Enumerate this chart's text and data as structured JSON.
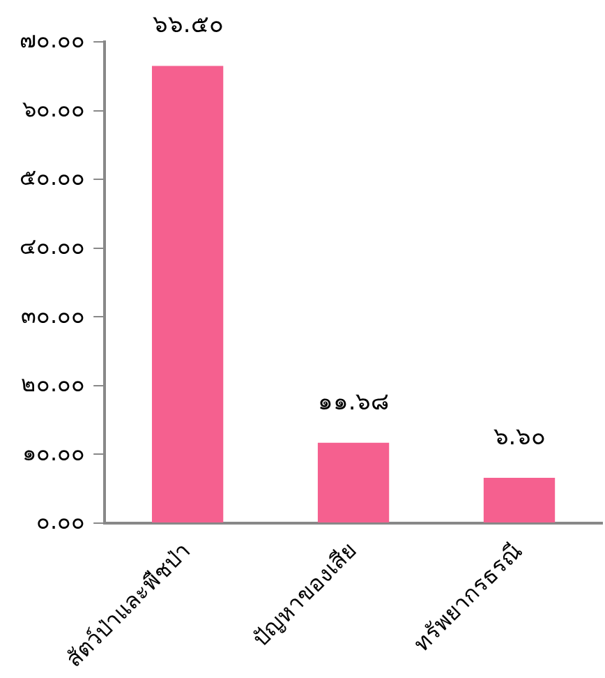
{
  "chart_data": {
    "type": "bar",
    "categories": [
      "สัตว์ป่าและพืชป่า",
      "ปัญหาของเสีย",
      "ทรัพยากรธรณี"
    ],
    "values": [
      66.5,
      11.68,
      6.6
    ],
    "value_labels": [
      "๖๖.๕๐",
      "๑๑.๖๘",
      "๖.๖๐"
    ],
    "color": "#f5608f",
    "ylim": [
      0,
      70
    ],
    "yticks": [
      {
        "value": 0,
        "label": "๐.๐๐"
      },
      {
        "value": 10,
        "label": "๑๐.๐๐"
      },
      {
        "value": 20,
        "label": "๒๐.๐๐"
      },
      {
        "value": 30,
        "label": "๓๐.๐๐"
      },
      {
        "value": 40,
        "label": "๔๐.๐๐"
      },
      {
        "value": 50,
        "label": "๕๐.๐๐"
      },
      {
        "value": 60,
        "label": "๖๐.๐๐"
      },
      {
        "value": 70,
        "label": "๗๐.๐๐"
      }
    ],
    "grid": false,
    "legend": false
  }
}
